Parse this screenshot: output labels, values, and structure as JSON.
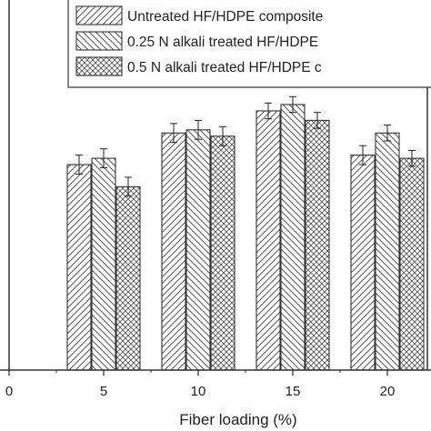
{
  "chart_data": {
    "type": "bar",
    "title": "",
    "xlabel": "Fiber loading (%)",
    "ylabel": "",
    "x_ticks": [
      "0",
      "5",
      "10",
      "15",
      "20"
    ],
    "categories": [
      "5",
      "10",
      "15",
      "20"
    ],
    "ylim": [
      0,
      100
    ],
    "grid": false,
    "legend_position": "top-right",
    "series": [
      {
        "name": "Untreated HF/HDPE  composite",
        "pattern": "diagonal-forward",
        "values": [
          65,
          75,
          82,
          68
        ],
        "errors": [
          3,
          3,
          2.5,
          3
        ]
      },
      {
        "name": "0.25 N alkali treated HF/HDPE",
        "pattern": "diagonal-backward",
        "values": [
          67,
          76,
          84,
          75
        ],
        "errors": [
          3,
          3,
          2.5,
          2.5
        ]
      },
      {
        "name": "0.5 N alkali treated HF/HDPE  c",
        "pattern": "crosshatch",
        "values": [
          58,
          74,
          79,
          67
        ],
        "errors": [
          3,
          3,
          2.5,
          2.5
        ]
      }
    ],
    "colors": {
      "bar_stroke": "#333333",
      "hatch": "#555555",
      "axis": "#333333"
    }
  }
}
